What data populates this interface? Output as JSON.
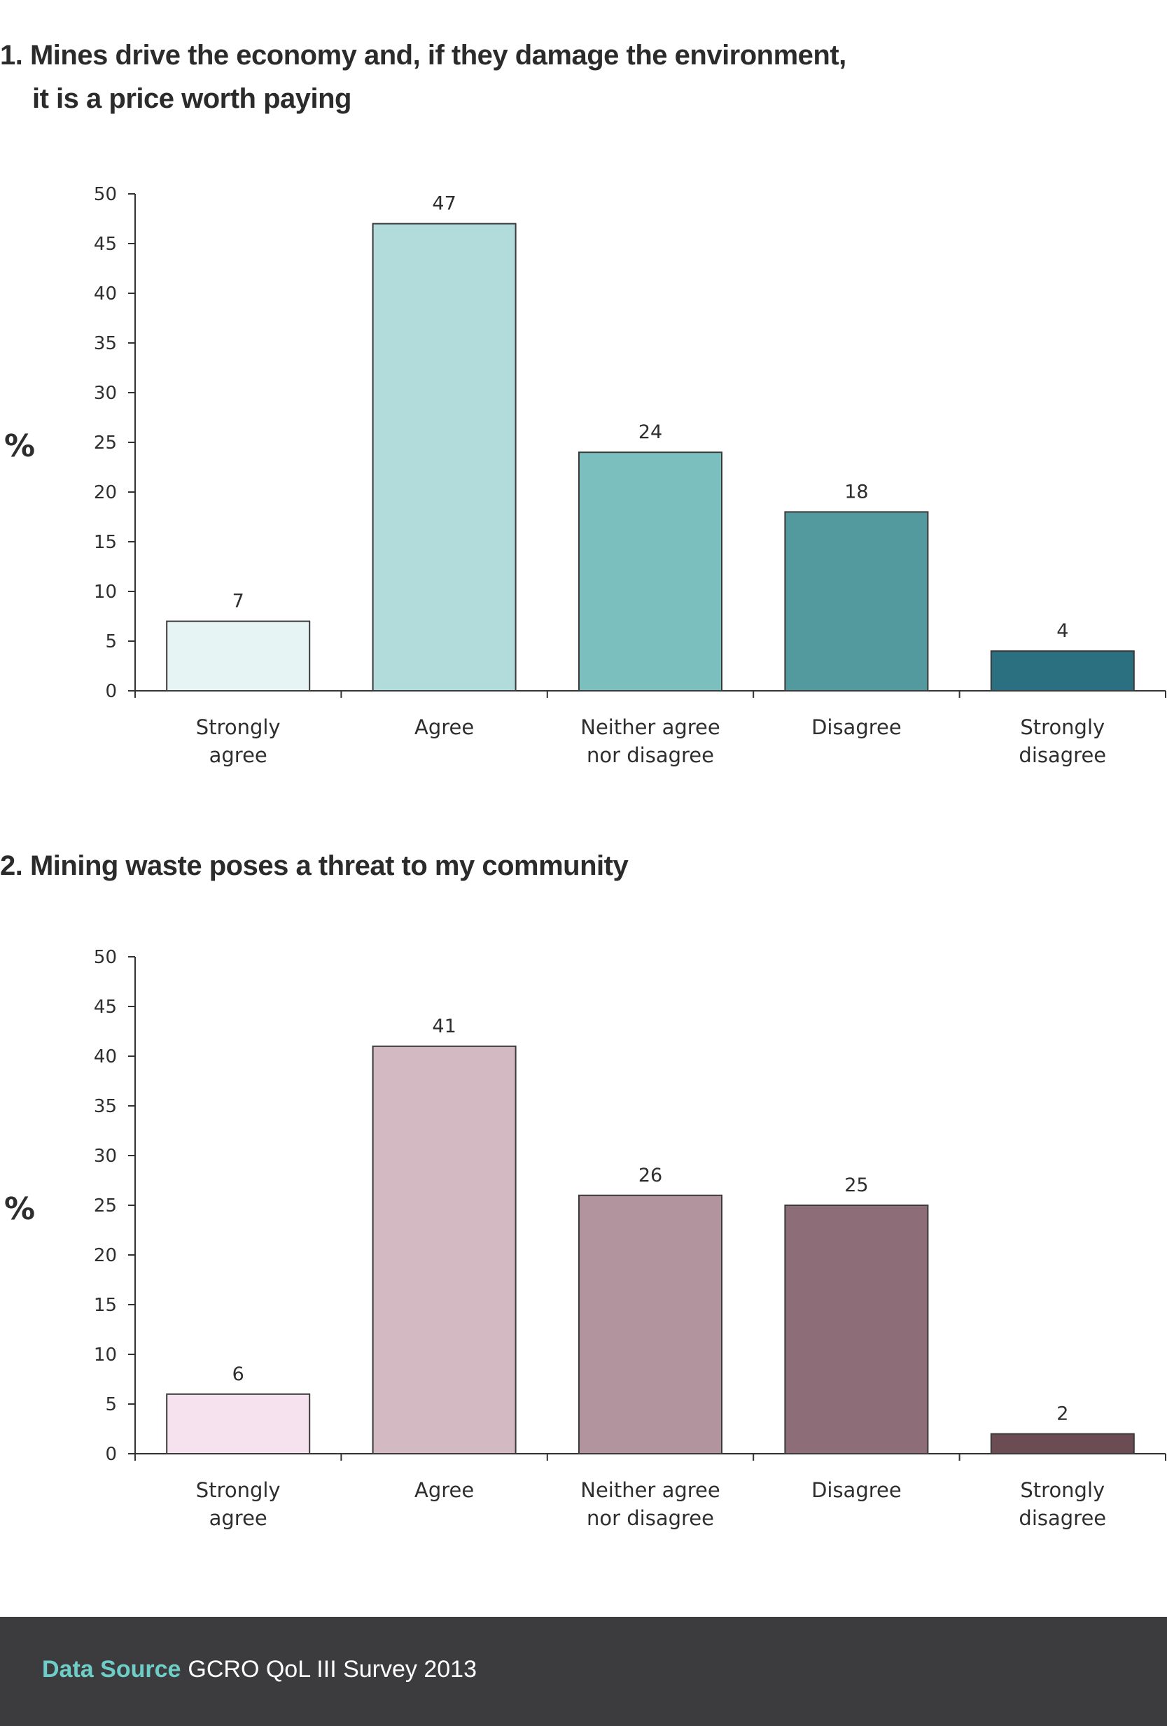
{
  "charts": [
    {
      "title_line1": "1. Mines drive the economy and, if they damage the environment,",
      "title_line2": "it is a price worth paying",
      "ylabel": "%",
      "yticks": [
        "0",
        "5",
        "10",
        "15",
        "20",
        "25",
        "30",
        "35",
        "40",
        "45",
        "50"
      ],
      "category_lines": [
        [
          "Strongly",
          "agree"
        ],
        [
          "Agree"
        ],
        [
          "Neither agree",
          "nor disagree"
        ],
        [
          "Disagree"
        ],
        [
          "Strongly",
          "disagree"
        ]
      ],
      "colors": [
        "#e6f4f4",
        "#b2dbdc",
        "#7cbfbf",
        "#529a9e",
        "#2a7080"
      ]
    },
    {
      "title_line1": "2. Mining waste poses a threat to my community",
      "ylabel": "%",
      "yticks": [
        "0",
        "5",
        "10",
        "15",
        "20",
        "25",
        "30",
        "35",
        "40",
        "45",
        "50"
      ],
      "category_lines": [
        [
          "Strongly",
          "agree"
        ],
        [
          "Agree"
        ],
        [
          "Neither agree",
          "nor disagree"
        ],
        [
          "Disagree"
        ],
        [
          "Strongly",
          "disagree"
        ]
      ],
      "colors": [
        "#f5e2ee",
        "#d2b9c2",
        "#b2949e",
        "#8d6e78",
        "#6a4c52"
      ]
    }
  ],
  "chart_data": [
    {
      "type": "bar",
      "title": "1. Mines drive the economy and, if they damage the environment, it is a price worth paying",
      "categories": [
        "Strongly agree",
        "Agree",
        "Neither agree nor disagree",
        "Disagree",
        "Strongly disagree"
      ],
      "values": [
        7,
        47,
        24,
        18,
        4
      ],
      "ylabel": "%",
      "ylim": [
        0,
        50
      ],
      "grid": false
    },
    {
      "type": "bar",
      "title": "2. Mining waste poses a threat to my community",
      "categories": [
        "Strongly agree",
        "Agree",
        "Neither agree nor disagree",
        "Disagree",
        "Strongly disagree"
      ],
      "values": [
        6,
        41,
        26,
        25,
        2
      ],
      "ylabel": "%",
      "ylim": [
        0,
        50
      ],
      "grid": false
    }
  ],
  "footer": {
    "label": "Data Source",
    "text": "GCRO QoL III Survey 2013"
  }
}
